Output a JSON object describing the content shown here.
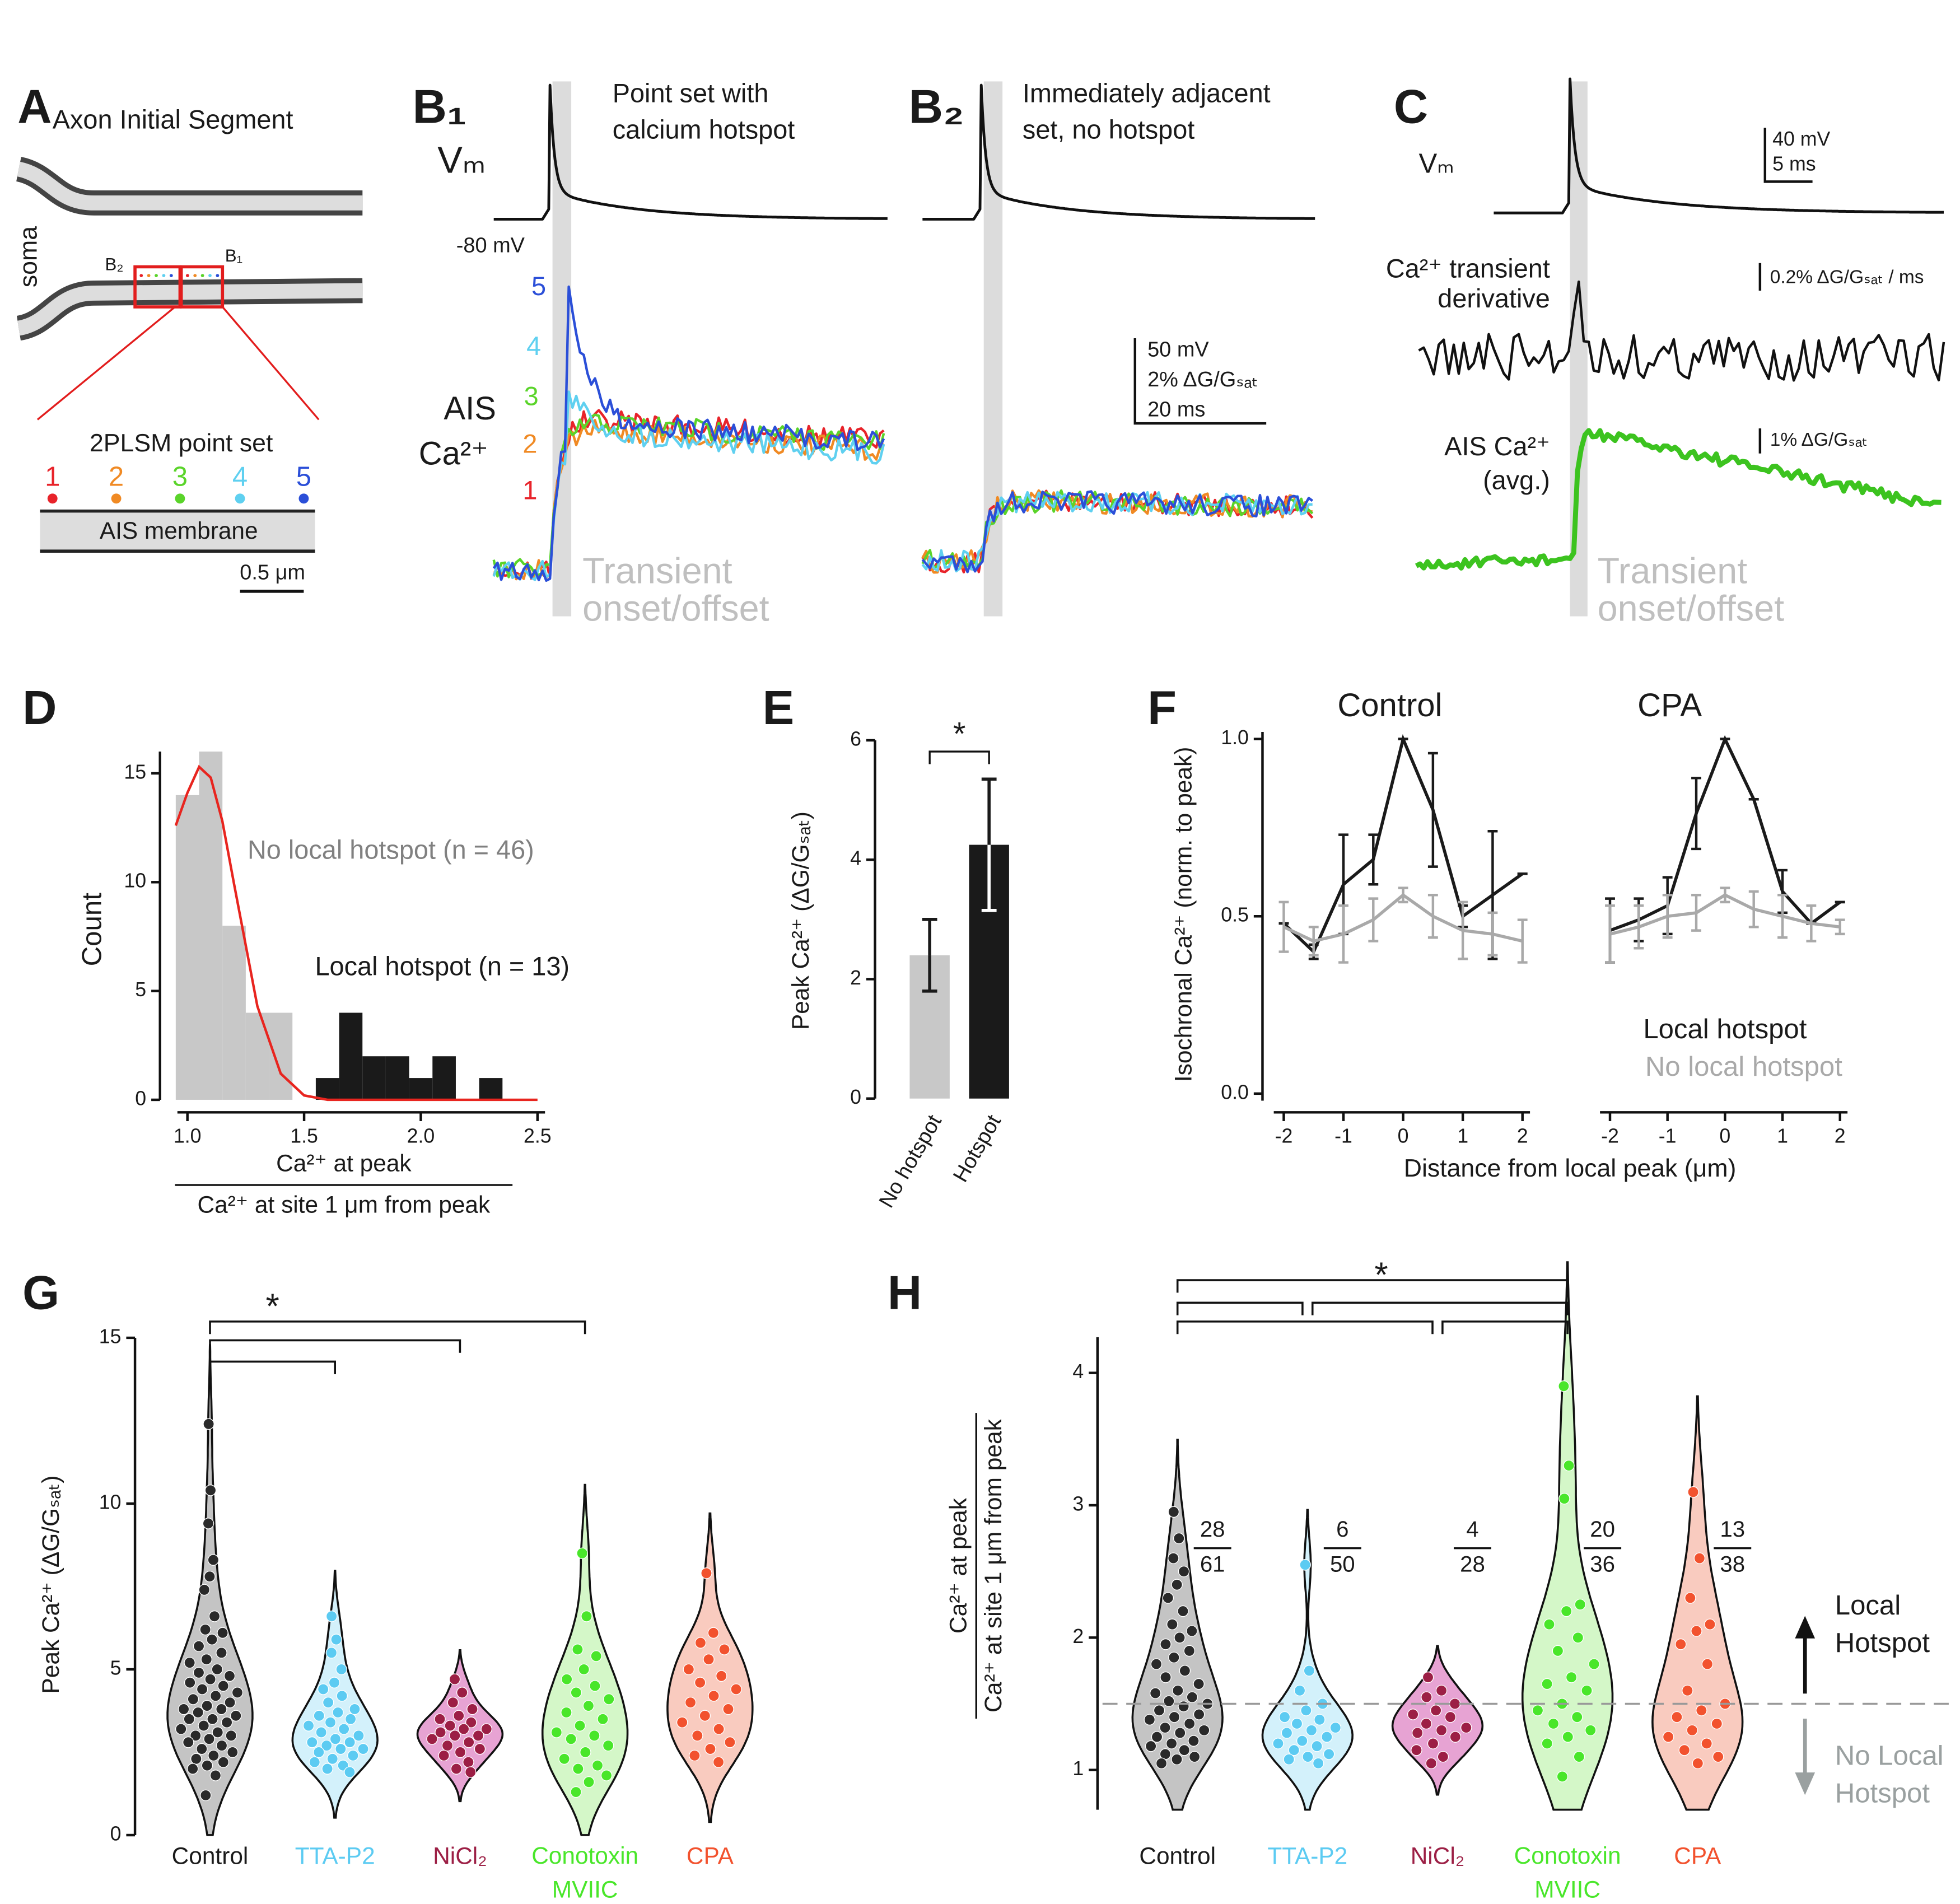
{
  "panels": {
    "A": {
      "label": "A",
      "title": "Axon Initial Segment",
      "soma": "soma",
      "box_labels": [
        "B₂",
        "B₁"
      ],
      "point_set": "2PLSM point set",
      "points": [
        "1",
        "2",
        "3",
        "4",
        "5"
      ],
      "point_colors": [
        "#e8232a",
        "#f08a24",
        "#5ad42a",
        "#5fd0f0",
        "#2b4fd8"
      ],
      "membrane": "AIS membrane",
      "scale": "0.5 μm"
    },
    "B1": {
      "label": "B₁",
      "vm": "Vₘ",
      "caption": [
        "Point set with",
        "calcium hotspot"
      ],
      "baseline": "-80 mV",
      "traces": [
        "5",
        "4",
        "3",
        "2",
        "1"
      ],
      "ca_label": [
        "AIS",
        "Ca²⁺"
      ],
      "window": [
        "Transient",
        "onset/offset"
      ]
    },
    "B2": {
      "label": "B₂",
      "caption": [
        "Immediately adjacent",
        "set, no hotspot"
      ],
      "scale": [
        "50 mV",
        "2% ΔG/Gₛₐₜ",
        "20 ms"
      ]
    },
    "C": {
      "label": "C",
      "vm": "Vₘ",
      "vm_scale": [
        "40 mV",
        "5 ms"
      ],
      "derivative_label": [
        "Ca²⁺ transient",
        "derivative"
      ],
      "derivative_scale": "0.2% ΔG/Gₛₐₜ / ms",
      "ca_label": [
        "AIS Ca²⁺",
        "(avg.)"
      ],
      "ca_scale": "1% ΔG/Gₛₐₜ",
      "window": [
        "Transient",
        "onset/offset"
      ]
    }
  },
  "chart_data": [
    {
      "type": "histogram",
      "label": "D",
      "series": [
        {
          "name": "No local hotspot (n = 46)",
          "color": "#c8c8c8",
          "bins": [
            0.95,
            1.05,
            1.15,
            1.25,
            1.35,
            1.45
          ],
          "values": [
            14,
            16,
            8,
            4,
            4
          ]
        },
        {
          "name": "Local hotspot (n = 13)",
          "color": "#1a1a1a",
          "bins": [
            1.55,
            1.65,
            1.75,
            1.85,
            1.95,
            2.05,
            2.15,
            2.25,
            2.35
          ],
          "values": [
            1,
            4,
            2,
            2,
            1,
            2,
            0,
            1
          ]
        }
      ],
      "fit": {
        "color": "#e8251f",
        "x": [
          0.95,
          1.0,
          1.05,
          1.1,
          1.15,
          1.2,
          1.3,
          1.4,
          1.5,
          1.6,
          1.8,
          2.0,
          2.2,
          2.5
        ],
        "values": [
          12.6,
          14.1,
          15.3,
          14.8,
          12.8,
          9.9,
          4.3,
          1.2,
          0.2,
          0,
          0,
          0,
          0,
          0
        ]
      },
      "xlabel": [
        "Ca²⁺ at peak",
        "Ca²⁺ at site 1 μm from peak"
      ],
      "ylabel": "Count",
      "xlim": [
        0.92,
        2.5
      ],
      "xticks": [
        {
          "value": 1,
          "label": "1.0"
        },
        {
          "value": 1.5,
          "label": "1.5"
        },
        {
          "value": 2,
          "label": "2.0"
        },
        {
          "value": 2.5,
          "label": "2.5"
        }
      ],
      "ylim": [
        0,
        16
      ],
      "yticks": [
        0,
        5,
        10,
        15
      ]
    },
    {
      "type": "bar",
      "label": "E",
      "categories": [
        "No hotspot",
        "Hotspot"
      ],
      "values": [
        2.4,
        4.25
      ],
      "errors": [
        0.6,
        1.1
      ],
      "colors": [
        "#c8c8c8",
        "#1a1a1a"
      ],
      "ylabel": "Peak Ca²⁺ (ΔG/Gₛₐₜ)",
      "ylim": [
        0,
        6
      ],
      "yticks": [
        0,
        2,
        4,
        6
      ],
      "significance": "*"
    },
    {
      "type": "line",
      "label": "F",
      "title": "Control",
      "x": [
        -2,
        -1.5,
        -1,
        -0.5,
        0,
        0.5,
        1,
        1.5,
        2
      ],
      "series": [
        {
          "color": "#1a1a1a",
          "values": [
            0.48,
            0.4,
            0.59,
            0.66,
            1.0,
            0.8,
            0.5,
            0.56,
            0.62
          ],
          "errors": [
            0,
            0.02,
            0.14,
            0.07,
            0,
            0.16,
            0.03,
            0.18,
            0
          ]
        },
        {
          "color": "#a9a9a9",
          "values": [
            0.47,
            0.43,
            0.45,
            0.49,
            0.56,
            0.5,
            0.46,
            0.45,
            0.43
          ],
          "errors": [
            0.07,
            0.04,
            0.08,
            0.06,
            0.02,
            0.06,
            0.08,
            0.06,
            0.06
          ]
        }
      ],
      "ylabel": "Isochronal Ca²⁺ (norm. to peak)",
      "xlabel": "Distance from local peak (μm)",
      "xlim": [
        -2.3,
        2.3
      ],
      "xticks": [
        -2,
        -1,
        0,
        1,
        2
      ],
      "ylim": [
        -0.02,
        1.02
      ],
      "yticks": [
        {
          "value": 0,
          "label": "0.0"
        },
        {
          "value": 0.5,
          "label": "0.5"
        },
        {
          "value": 1,
          "label": "1.0"
        }
      ]
    },
    {
      "type": "line",
      "title": "CPA",
      "x": [
        -2,
        -1.5,
        -1,
        -0.5,
        0,
        0.5,
        1,
        1.5,
        2
      ],
      "series": [
        {
          "name": "Local hotspot",
          "color": "#1a1a1a",
          "values": [
            0.46,
            0.49,
            0.53,
            0.79,
            1.0,
            0.83,
            0.57,
            0.48,
            0.54
          ],
          "errors": [
            0.09,
            0.06,
            0.08,
            0.1,
            0,
            0,
            0.06,
            0,
            0
          ]
        },
        {
          "name": "No local hotspot",
          "color": "#a9a9a9",
          "values": [
            0.45,
            0.47,
            0.5,
            0.51,
            0.56,
            0.52,
            0.5,
            0.48,
            0.47
          ],
          "errors": [
            0.08,
            0.06,
            0.06,
            0.05,
            0.02,
            0.05,
            0.06,
            0.05,
            0.02
          ]
        }
      ],
      "xlim": [
        -2.3,
        2.3
      ],
      "xticks": [
        -2,
        -1,
        0,
        1,
        2
      ],
      "ylim": [
        -0.02,
        1.02
      ]
    },
    {
      "type": "violin",
      "label": "G",
      "categories": [
        "Control",
        "TTA-P2",
        "NiCl₂",
        "Conotoxin MVIIC",
        "CPA"
      ],
      "category_colors": [
        "#1a1a1a",
        "#5ccbf2",
        "#9c1f45",
        "#49e62a",
        "#f2522e"
      ],
      "series": [
        {
          "color": "#2a2a2a",
          "fill": "#c4c4c4",
          "values": [
            12.4,
            10.4,
            9.4,
            8.3,
            7.8,
            7.4,
            6.6,
            6.2,
            6.1,
            5.9,
            5.7,
            5.5,
            5.3,
            5.2,
            5.0,
            4.9,
            4.8,
            4.7,
            4.6,
            4.5,
            4.4,
            4.3,
            4.2,
            4.1,
            4.0,
            3.9,
            3.8,
            3.8,
            3.7,
            3.6,
            3.5,
            3.5,
            3.4,
            3.3,
            3.2,
            3.1,
            3.0,
            3.0,
            2.9,
            2.8,
            2.7,
            2.6,
            2.5,
            2.4,
            2.3,
            2.2,
            2.1,
            2.0,
            1.8,
            1.2
          ]
        },
        {
          "color": "#5ccbf2",
          "fill": "#d3f1fb",
          "values": [
            6.6,
            5.9,
            5.5,
            5.0,
            4.6,
            4.4,
            4.2,
            4.0,
            3.8,
            3.7,
            3.6,
            3.5,
            3.4,
            3.3,
            3.2,
            3.1,
            3.0,
            2.9,
            2.8,
            2.8,
            2.7,
            2.6,
            2.6,
            2.5,
            2.4,
            2.3,
            2.2,
            2.1,
            2.0,
            1.9
          ]
        },
        {
          "color": "#9c1f45",
          "fill": "#e7a3d3",
          "values": [
            4.7,
            4.3,
            4.0,
            3.8,
            3.6,
            3.5,
            3.4,
            3.3,
            3.2,
            3.2,
            3.1,
            3.0,
            3.0,
            2.9,
            2.8,
            2.7,
            2.6,
            2.5,
            2.4,
            2.2,
            2.0,
            1.9
          ]
        },
        {
          "color": "#49e62a",
          "fill": "#d4f7c8",
          "values": [
            8.5,
            6.6,
            5.6,
            5.4,
            5.0,
            4.7,
            4.5,
            4.3,
            4.1,
            3.9,
            3.7,
            3.5,
            3.3,
            3.1,
            3.0,
            2.9,
            2.7,
            2.5,
            2.3,
            2.1,
            2.0,
            1.8,
            1.6,
            1.3
          ]
        },
        {
          "color": "#f2522e",
          "fill": "#f9cbbf",
          "values": [
            7.9,
            6.1,
            5.8,
            5.6,
            5.3,
            5.0,
            4.8,
            4.6,
            4.4,
            4.2,
            4.0,
            3.8,
            3.6,
            3.4,
            3.2,
            3.0,
            2.8,
            2.6,
            2.4,
            2.2
          ]
        }
      ],
      "ylabel": "Peak Ca²⁺ (ΔG/Gₛₐₜ)",
      "ylim": [
        0,
        15
      ],
      "yticks": [
        0,
        5,
        10,
        15
      ],
      "significance": "*"
    },
    {
      "type": "violin",
      "label": "H",
      "categories": [
        "Control",
        "TTA-P2",
        "NiCl₂",
        "Conotoxin MVIIC",
        "CPA"
      ],
      "category_colors": [
        "#1a1a1a",
        "#5ccbf2",
        "#9c1f45",
        "#49e62a",
        "#f2522e"
      ],
      "series": [
        {
          "color": "#2a2a2a",
          "fill": "#c4c4c4",
          "values": [
            2.95,
            2.75,
            2.6,
            2.5,
            2.4,
            2.3,
            2.2,
            2.1,
            2.05,
            2.0,
            1.95,
            1.9,
            1.85,
            1.8,
            1.75,
            1.7,
            1.65,
            1.6,
            1.58,
            1.55,
            1.52,
            1.5,
            1.48,
            1.45,
            1.42,
            1.4,
            1.38,
            1.35,
            1.32,
            1.3,
            1.28,
            1.25,
            1.22,
            1.2,
            1.18,
            1.15,
            1.12,
            1.1,
            1.08,
            1.05
          ]
        },
        {
          "color": "#5ccbf2",
          "fill": "#d3f1fb",
          "values": [
            2.55,
            1.75,
            1.6,
            1.5,
            1.45,
            1.4,
            1.38,
            1.35,
            1.32,
            1.3,
            1.28,
            1.25,
            1.22,
            1.2,
            1.18,
            1.15,
            1.12,
            1.1,
            1.08,
            1.05
          ]
        },
        {
          "color": "#9c1f45",
          "fill": "#e7a3d3",
          "values": [
            1.7,
            1.6,
            1.55,
            1.5,
            1.45,
            1.42,
            1.4,
            1.35,
            1.32,
            1.3,
            1.28,
            1.25,
            1.2,
            1.15,
            1.1,
            1.05
          ]
        },
        {
          "color": "#49e62a",
          "fill": "#d4f7c8",
          "values": [
            3.9,
            3.3,
            3.05,
            2.25,
            2.2,
            2.1,
            2.0,
            1.9,
            1.8,
            1.7,
            1.65,
            1.6,
            1.5,
            1.45,
            1.4,
            1.35,
            1.3,
            1.25,
            1.2,
            1.1,
            0.95
          ]
        },
        {
          "color": "#f2522e",
          "fill": "#f9cbbf",
          "values": [
            3.1,
            2.6,
            2.3,
            2.1,
            2.05,
            1.95,
            1.8,
            1.6,
            1.5,
            1.45,
            1.4,
            1.35,
            1.3,
            1.25,
            1.2,
            1.15,
            1.1,
            1.05
          ]
        }
      ],
      "fractions": [
        [
          28,
          61
        ],
        [
          6,
          50
        ],
        [
          4,
          28
        ],
        [
          20,
          36
        ],
        [
          13,
          38
        ]
      ],
      "threshold": 1.5,
      "threshold_labels": [
        [
          "Local",
          "Hotspot"
        ],
        [
          "No Local",
          "Hotspot"
        ]
      ],
      "ylabel": [
        "Ca²⁺ at peak",
        "Ca²⁺ at site 1 μm from peak"
      ],
      "ylim": [
        0.7,
        4.27
      ],
      "yticks": [
        1,
        2,
        3,
        4
      ],
      "significance": "*"
    }
  ]
}
